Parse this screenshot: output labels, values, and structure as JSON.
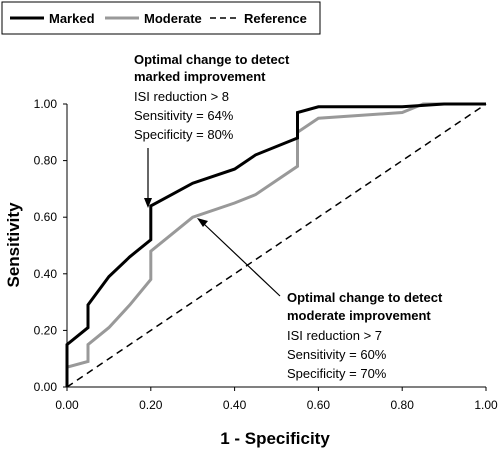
{
  "chart_data": {
    "type": "line",
    "title": "",
    "xlabel": "1 - Specificity",
    "ylabel": "Sensitivity",
    "xlim": [
      0,
      1
    ],
    "ylim": [
      0,
      1
    ],
    "x_ticks": [
      "0.00",
      "0.20",
      "0.40",
      "0.60",
      "0.80",
      "1.00"
    ],
    "y_ticks": [
      "0.00",
      "0.20",
      "0.40",
      "0.60",
      "0.80",
      "1.00"
    ],
    "grid": false,
    "legend_position": "top-left",
    "series": [
      {
        "name": "Marked",
        "color": "#000000",
        "style": "solid",
        "x": [
          0.0,
          0.0,
          0.05,
          0.05,
          0.1,
          0.15,
          0.2,
          0.2,
          0.25,
          0.3,
          0.4,
          0.45,
          0.55,
          0.55,
          0.6,
          0.8,
          0.9,
          1.0
        ],
        "y": [
          0.0,
          0.15,
          0.21,
          0.29,
          0.39,
          0.46,
          0.52,
          0.64,
          0.68,
          0.72,
          0.77,
          0.82,
          0.88,
          0.97,
          0.99,
          0.99,
          1.0,
          1.0
        ]
      },
      {
        "name": "Moderate",
        "color": "#999999",
        "style": "solid",
        "x": [
          0.0,
          0.0,
          0.05,
          0.05,
          0.1,
          0.15,
          0.2,
          0.2,
          0.25,
          0.3,
          0.4,
          0.45,
          0.55,
          0.55,
          0.6,
          0.8,
          0.85,
          1.0
        ],
        "y": [
          0.0,
          0.07,
          0.09,
          0.15,
          0.21,
          0.29,
          0.38,
          0.48,
          0.54,
          0.6,
          0.65,
          0.68,
          0.78,
          0.9,
          0.95,
          0.97,
          1.0,
          1.0
        ]
      },
      {
        "name": "Reference",
        "color": "#000000",
        "style": "dashed",
        "x": [
          0.0,
          1.0
        ],
        "y": [
          0.0,
          1.0
        ]
      }
    ],
    "annotations": [
      {
        "title": [
          "Optimal change to detect",
          "marked improvement"
        ],
        "lines": [
          "ISI reduction > 8",
          "Sensitivity = 64%",
          "Specificity = 80%"
        ],
        "target": [
          0.2,
          0.64
        ]
      },
      {
        "title": [
          "Optimal change to detect",
          "moderate improvement"
        ],
        "lines": [
          "ISI reduction > 7",
          "Sensitivity = 60%",
          "Specificity = 70%"
        ],
        "target": [
          0.3,
          0.6
        ]
      }
    ]
  }
}
